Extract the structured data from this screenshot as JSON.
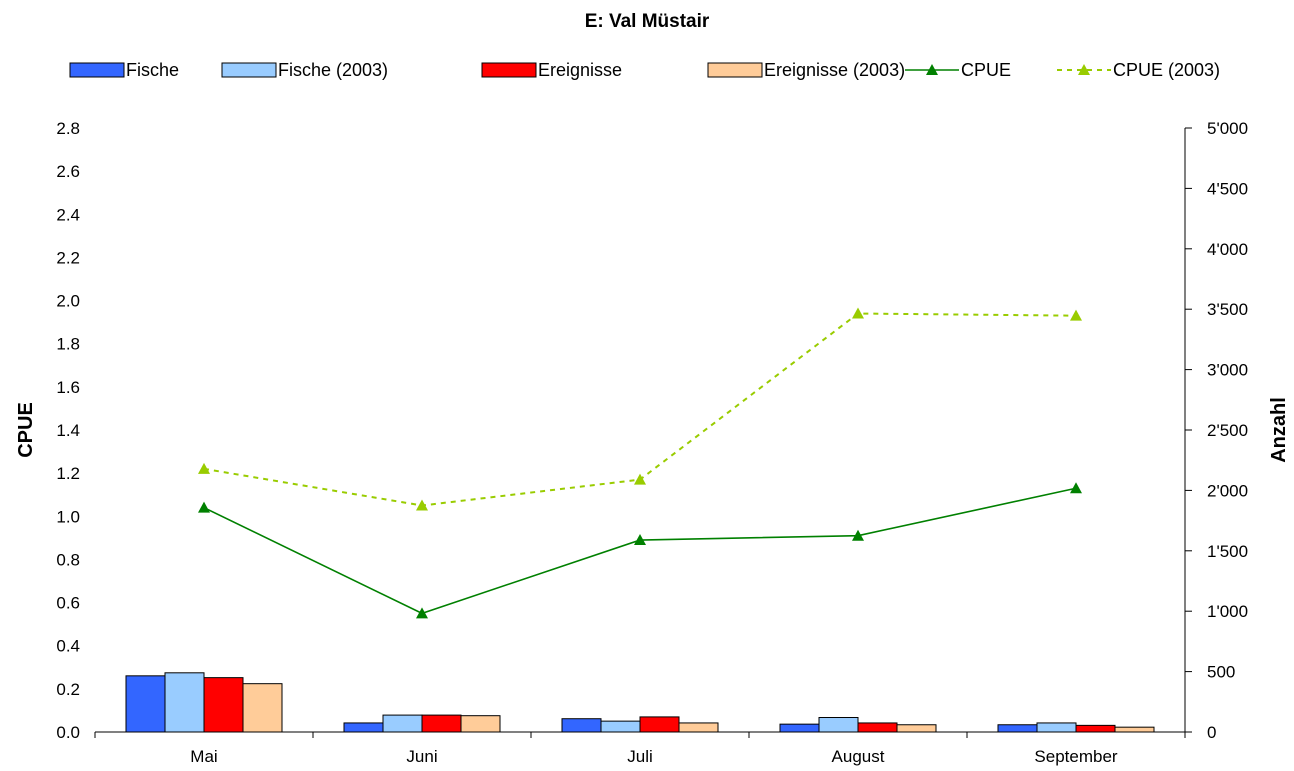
{
  "chart_data": {
    "type": "bar",
    "title": "E: Val Müstair",
    "ylabel_left": "CPUE",
    "ylabel_right": "Anzahl",
    "xlabel": "",
    "categories": [
      "Mai",
      "Juni",
      "Juli",
      "August",
      "September"
    ],
    "ylim_left": [
      0,
      2.8
    ],
    "yticks_left": [
      "0.0",
      "0.2",
      "0.4",
      "0.6",
      "0.8",
      "1.0",
      "1.2",
      "1.4",
      "1.6",
      "1.8",
      "2.0",
      "2.2",
      "2.4",
      "2.6",
      "2.8"
    ],
    "ylim_right": [
      0,
      5000
    ],
    "yticks_right": [
      "0",
      "500",
      "1'000",
      "1'500",
      "2'000",
      "2'500",
      "3'000",
      "3'500",
      "4'000",
      "4'500",
      "5'000"
    ],
    "legend_position": "top",
    "grid": false,
    "series": [
      {
        "name": "Fische",
        "kind": "bar",
        "axis": "right",
        "color": "#3366ff",
        "values": [
          465,
          75,
          110,
          65,
          60
        ]
      },
      {
        "name": "Fische (2003)",
        "kind": "bar",
        "axis": "right",
        "color": "#99ccff",
        "values": [
          490,
          140,
          90,
          120,
          75
        ]
      },
      {
        "name": "Ereignisse",
        "kind": "bar",
        "axis": "right",
        "color": "#ff0000",
        "values": [
          450,
          140,
          125,
          75,
          55
        ]
      },
      {
        "name": "Ereignisse (2003)",
        "kind": "bar",
        "axis": "right",
        "color": "#ffcc99",
        "values": [
          400,
          135,
          75,
          60,
          40
        ]
      },
      {
        "name": "CPUE",
        "kind": "line",
        "axis": "left",
        "color": "#008000",
        "dashed": false,
        "values": [
          1.04,
          0.55,
          0.89,
          0.91,
          1.13
        ]
      },
      {
        "name": "CPUE (2003)",
        "kind": "line",
        "axis": "left",
        "color": "#99cc00",
        "dashed": true,
        "values": [
          1.22,
          1.05,
          1.17,
          1.94,
          1.93
        ]
      }
    ]
  }
}
